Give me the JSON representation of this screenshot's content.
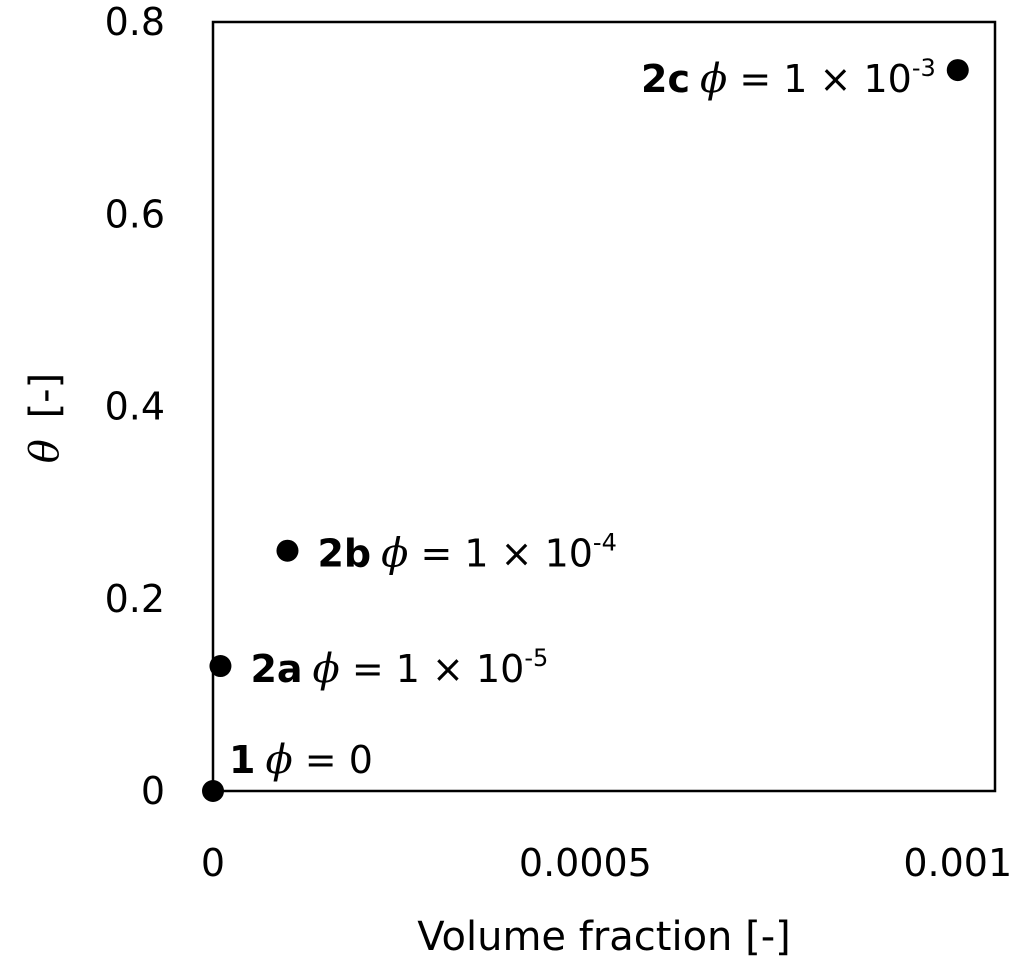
{
  "chart_data": {
    "type": "scatter",
    "title": "",
    "xlabel": "Volume fraction [-]",
    "ylabel": {
      "symbol": "θ",
      "unit": "[-]"
    },
    "xlim": [
      0,
      0.00105
    ],
    "ylim": [
      0,
      0.8
    ],
    "xticks": [
      {
        "value": 0,
        "label": "0"
      },
      {
        "value": 0.0005,
        "label": "0.0005"
      },
      {
        "value": 0.001,
        "label": "0.001"
      }
    ],
    "yticks": [
      {
        "value": 0,
        "label": "0"
      },
      {
        "value": 0.2,
        "label": "0.2"
      },
      {
        "value": 0.4,
        "label": "0.4"
      },
      {
        "value": 0.6,
        "label": "0.6"
      },
      {
        "value": 0.8,
        "label": "0.8"
      }
    ],
    "grid": false,
    "legend": "none",
    "marker_color": "#000000",
    "points": [
      {
        "x": 0,
        "y": 0,
        "id": "1",
        "phi": "ϕ",
        "eq": " = 0",
        "exp": ""
      },
      {
        "x": 1e-05,
        "y": 0.13,
        "id": "2a",
        "phi": "ϕ",
        "eq": " = 1 × 10",
        "exp": "-5"
      },
      {
        "x": 0.0001,
        "y": 0.25,
        "id": "2b",
        "phi": "ϕ",
        "eq": " = 1 × 10",
        "exp": "-4"
      },
      {
        "x": 0.001,
        "y": 0.75,
        "id": "2c",
        "phi": "ϕ",
        "eq": " = 1 × 10",
        "exp": "-3"
      }
    ]
  }
}
